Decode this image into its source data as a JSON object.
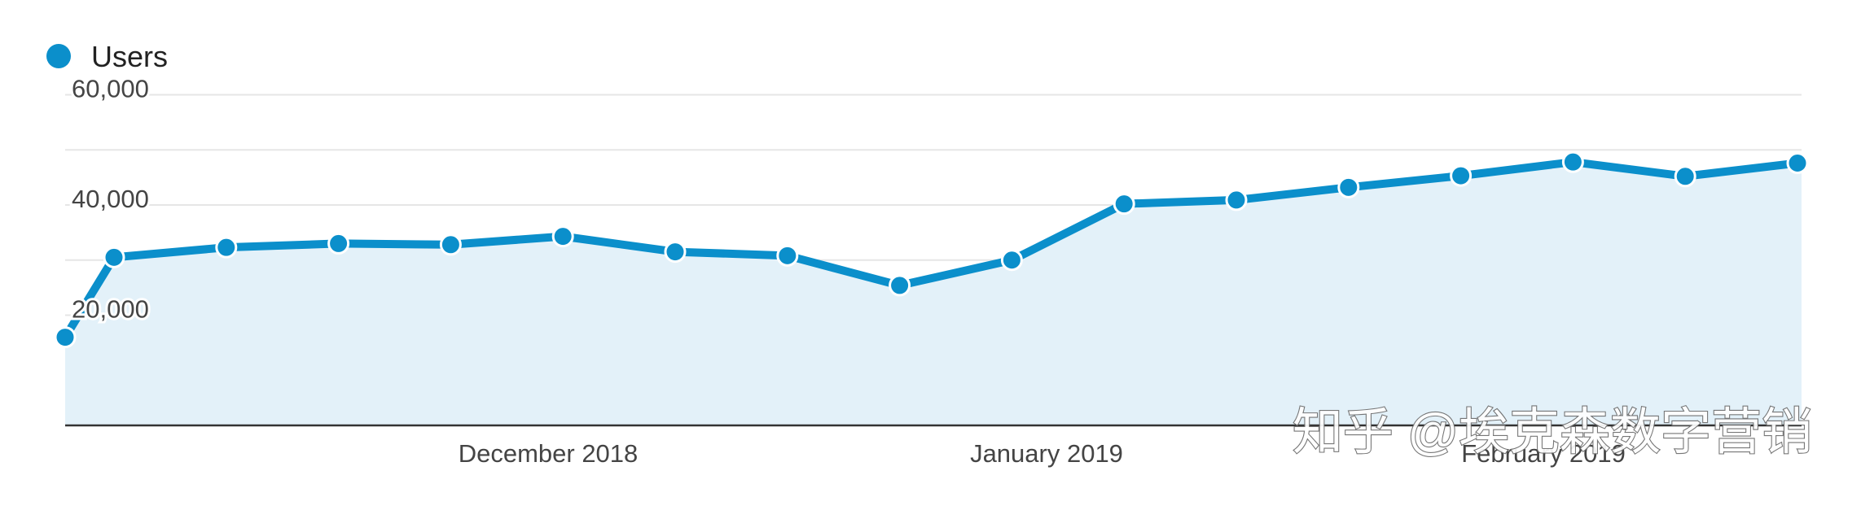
{
  "chart_data": {
    "type": "area",
    "legend_position": "top-left",
    "grid": true,
    "x_labels": [
      "December 2018",
      "January 2019",
      "February 2019"
    ],
    "y_ticks": [
      20000,
      40000,
      60000
    ],
    "y_tick_labels": [
      "20,000",
      "40,000",
      "60,000"
    ],
    "ylim": [
      0,
      60000
    ],
    "colors": {
      "line": "#0b8fcb",
      "fill": "#e3f1f9",
      "grid": "#e6e6e6",
      "axis": "#333333",
      "text": "#444444"
    },
    "series": [
      {
        "name": "Users",
        "values": [
          16000,
          30500,
          32300,
          33000,
          32800,
          34300,
          31500,
          30800,
          25400,
          30000,
          40200,
          40900,
          43200,
          45300,
          47800,
          45200,
          47600
        ]
      }
    ]
  },
  "watermark": "知乎 @埃克森数字营销"
}
